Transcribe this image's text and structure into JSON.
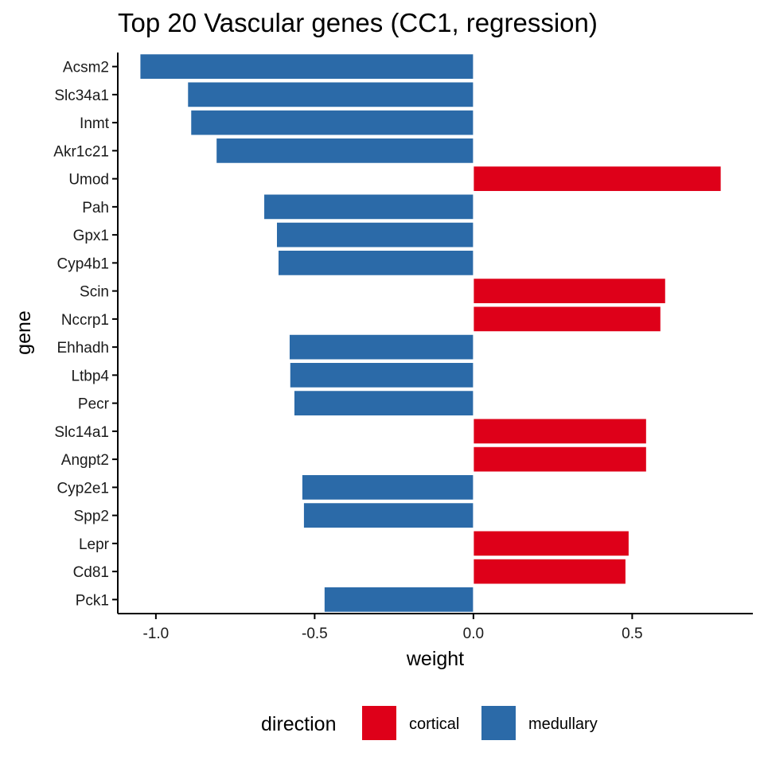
{
  "chart_data": {
    "type": "bar",
    "orientation": "horizontal",
    "title": "Top 20 Vascular genes (CC1, regression)",
    "xlabel": "weight",
    "ylabel": "gene",
    "xlim": [
      -1.12,
      0.88
    ],
    "xticks": [
      {
        "value": -1.0,
        "label": "-1.0"
      },
      {
        "value": -0.5,
        "label": "-0.5"
      },
      {
        "value": 0.0,
        "label": "0.0"
      },
      {
        "value": 0.5,
        "label": "0.5"
      }
    ],
    "grid": false,
    "legend": {
      "title": "direction",
      "position": "bottom",
      "entries": [
        {
          "key": "cortical",
          "label": "cortical",
          "color": "#de0019"
        },
        {
          "key": "medullary",
          "label": "medullary",
          "color": "#2b6aa8"
        }
      ]
    },
    "categories": [
      "Acsm2",
      "Slc34a1",
      "Inmt",
      "Akr1c21",
      "Umod",
      "Pah",
      "Gpx1",
      "Cyp4b1",
      "Scin",
      "Nccrp1",
      "Ehhadh",
      "Ltbp4",
      "Pecr",
      "Slc14a1",
      "Angpt2",
      "Cyp2e1",
      "Spp2",
      "Lepr",
      "Cd81",
      "Pck1"
    ],
    "values": [
      -1.05,
      -0.9,
      -0.89,
      -0.81,
      0.78,
      -0.66,
      -0.62,
      -0.615,
      0.605,
      0.59,
      -0.58,
      -0.578,
      -0.565,
      0.545,
      0.545,
      -0.54,
      -0.535,
      0.49,
      0.48,
      -0.47
    ],
    "direction": [
      "medullary",
      "medullary",
      "medullary",
      "medullary",
      "cortical",
      "medullary",
      "medullary",
      "medullary",
      "cortical",
      "cortical",
      "medullary",
      "medullary",
      "medullary",
      "cortical",
      "cortical",
      "medullary",
      "medullary",
      "cortical",
      "cortical",
      "medullary"
    ]
  }
}
